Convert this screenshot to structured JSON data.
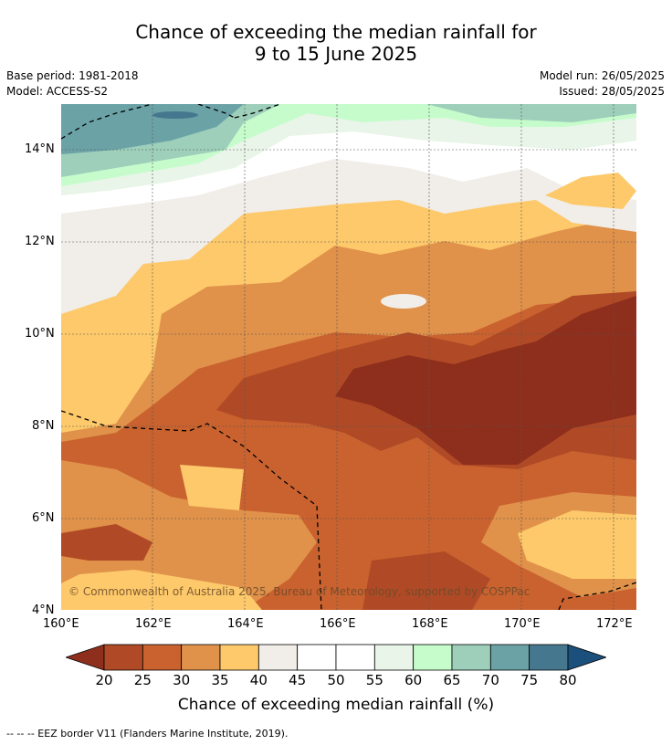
{
  "title_line1": "Chance of exceeding the median rainfall for",
  "title_line2": "9 to 15 June 2025",
  "base_period": "Base period: 1981-2018",
  "model": "Model: ACCESS-S2",
  "model_run": "Model run: 26/05/2025",
  "issued": "Issued: 28/05/2025",
  "copyright": "© Commonwealth of Australia 2025, Bureau of Meteorology, supported by COSPPac",
  "footnote": "--  --  -- EEZ border V11 (Flanders Marine Institute, 2019).",
  "map": {
    "lon_labels": [
      "160°E",
      "162°E",
      "164°E",
      "166°E",
      "168°E",
      "170°E",
      "172°E"
    ],
    "lat_labels": [
      "14°N",
      "12°N",
      "10°N",
      "8°N",
      "6°N",
      "4°N"
    ],
    "lon_range": [
      160,
      172.5
    ],
    "lat_range": [
      4,
      15
    ]
  },
  "colorbar": {
    "title": "Chance of exceeding median rainfall (%)",
    "labels": [
      "20",
      "25",
      "30",
      "35",
      "40",
      "45",
      "50",
      "55",
      "60",
      "65",
      "70",
      "75",
      "80"
    ],
    "colors": [
      "#8e2e1c",
      "#b04a26",
      "#c9622f",
      "#e0914a",
      "#fdc96a",
      "#f1ede8",
      "#ffffff",
      "#ffffff",
      "#e8f5e8",
      "#c6fccc",
      "#9dcfba",
      "#6ba2a6",
      "#45788f",
      "#1b4f7c"
    ]
  }
}
